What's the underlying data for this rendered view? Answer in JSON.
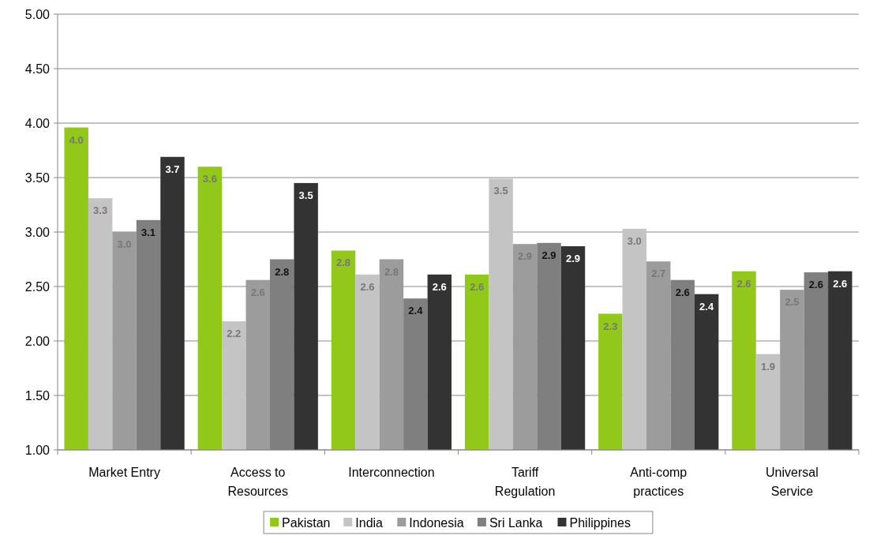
{
  "chart_data": {
    "type": "bar",
    "categories": [
      "Market Entry",
      "Access to Resources",
      "Interconnection",
      "Tariff Regulation",
      "Anti-comp practices",
      "Universal Service"
    ],
    "series": [
      {
        "name": "Pakistan",
        "color": "#92c81a",
        "values": [
          3.96,
          3.6,
          2.83,
          2.61,
          2.25,
          2.64
        ],
        "value_labels": [
          "4.0",
          "3.6",
          "2.8",
          "2.6",
          "2.3",
          "2.6"
        ]
      },
      {
        "name": "India",
        "color": "#c4c4c4",
        "values": [
          3.31,
          2.18,
          2.61,
          3.49,
          3.03,
          1.88
        ],
        "value_labels": [
          "3.3",
          "2.2",
          "2.6",
          "3.5",
          "3.0",
          "1.9"
        ]
      },
      {
        "name": "Indonesia",
        "color": "#9c9c9c",
        "values": [
          3.0,
          2.56,
          2.75,
          2.89,
          2.73,
          2.47
        ],
        "value_labels": [
          "3.0",
          "2.6",
          "2.8",
          "2.9",
          "2.7",
          "2.5"
        ]
      },
      {
        "name": "Sri Lanka",
        "color": "#7f7f7f",
        "values": [
          3.11,
          2.75,
          2.39,
          2.9,
          2.56,
          2.63
        ],
        "value_labels": [
          "3.1",
          "2.8",
          "2.4",
          "2.9",
          "2.6",
          "2.6"
        ]
      },
      {
        "name": "Philippines",
        "color": "#333333",
        "values": [
          3.69,
          3.45,
          2.61,
          2.87,
          2.43,
          2.64
        ],
        "value_labels": [
          "3.7",
          "3.5",
          "2.6",
          "2.9",
          "2.4",
          "2.6"
        ]
      }
    ],
    "ylim": [
      1,
      5
    ],
    "yticks": [
      {
        "value": 1,
        "label": "1.00"
      },
      {
        "value": 1.5,
        "label": "1.50"
      },
      {
        "value": 2,
        "label": "2.00"
      },
      {
        "value": 2.5,
        "label": "2.50"
      },
      {
        "value": 3,
        "label": "3.00"
      },
      {
        "value": 3.5,
        "label": "3.50"
      },
      {
        "value": 4,
        "label": "4.00"
      },
      {
        "value": 4.5,
        "label": "4.50"
      },
      {
        "value": 5,
        "label": "5.00"
      }
    ],
    "grid": "y",
    "legend": "bottom"
  }
}
